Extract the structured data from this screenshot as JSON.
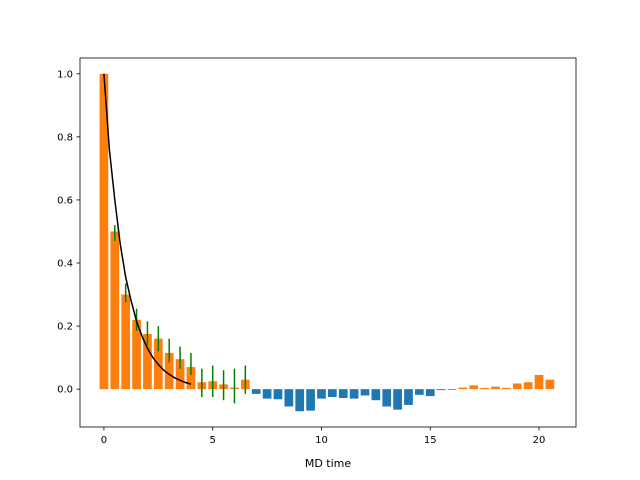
{
  "chart_data": {
    "type": "bar",
    "title": "",
    "xlabel": "MD time",
    "ylabel": "",
    "xlim": [
      -1.1,
      21.7
    ],
    "ylim": [
      -0.12,
      1.05
    ],
    "xticks": [
      0,
      5,
      10,
      15,
      20
    ],
    "yticks": [
      0.0,
      0.2,
      0.4,
      0.6,
      0.8,
      1.0
    ],
    "bar_width": 0.4,
    "colors": {
      "positive_bars": "#ff7f0e",
      "negative_bars": "#1f77b4",
      "error_bars": "#008000",
      "fit_line": "#000000"
    },
    "bars": {
      "x": [
        0.0,
        0.5,
        1.0,
        1.5,
        2.0,
        2.5,
        3.0,
        3.5,
        4.0,
        4.5,
        5.0,
        5.5,
        6.0,
        6.5,
        7.0,
        7.5,
        8.0,
        8.5,
        9.0,
        9.5,
        10.0,
        10.5,
        11.0,
        11.5,
        12.0,
        12.5,
        13.0,
        13.5,
        14.0,
        14.5,
        15.0,
        15.5,
        16.0,
        16.5,
        17.0,
        17.5,
        18.0,
        18.5,
        19.0,
        19.5,
        20.0,
        20.5
      ],
      "values": [
        1.0,
        0.5,
        0.3,
        0.22,
        0.175,
        0.16,
        0.115,
        0.095,
        0.07,
        0.022,
        0.025,
        0.015,
        0.005,
        0.03,
        -0.015,
        -0.03,
        -0.032,
        -0.055,
        -0.07,
        -0.068,
        -0.03,
        -0.025,
        -0.028,
        -0.03,
        -0.02,
        -0.035,
        -0.055,
        -0.065,
        -0.05,
        -0.018,
        -0.022,
        -0.003,
        -0.002,
        0.005,
        0.012,
        0.004,
        0.008,
        0.004,
        0.018,
        0.022,
        0.045,
        0.03
      ]
    },
    "error_bars": {
      "x": [
        0.5,
        1.0,
        1.5,
        2.0,
        2.5,
        3.0,
        3.5,
        4.0,
        4.5,
        5.0,
        5.5,
        6.0,
        6.5
      ],
      "low": [
        0.47,
        0.275,
        0.185,
        0.14,
        0.12,
        0.085,
        0.065,
        0.045,
        -0.025,
        -0.025,
        -0.035,
        -0.045,
        -0.015
      ],
      "high": [
        0.52,
        0.335,
        0.255,
        0.215,
        0.2,
        0.16,
        0.135,
        0.115,
        0.065,
        0.075,
        0.06,
        0.065,
        0.075
      ]
    },
    "fit_line": {
      "x": [
        0.0,
        0.25,
        0.5,
        0.75,
        1.0,
        1.25,
        1.5,
        1.75,
        2.0,
        2.25,
        2.5,
        2.75,
        3.0,
        3.25,
        3.5,
        3.75,
        4.0
      ],
      "y": [
        1.0,
        0.76,
        0.6,
        0.46,
        0.355,
        0.28,
        0.215,
        0.168,
        0.13,
        0.1,
        0.078,
        0.06,
        0.047,
        0.036,
        0.028,
        0.021,
        0.016
      ]
    }
  }
}
